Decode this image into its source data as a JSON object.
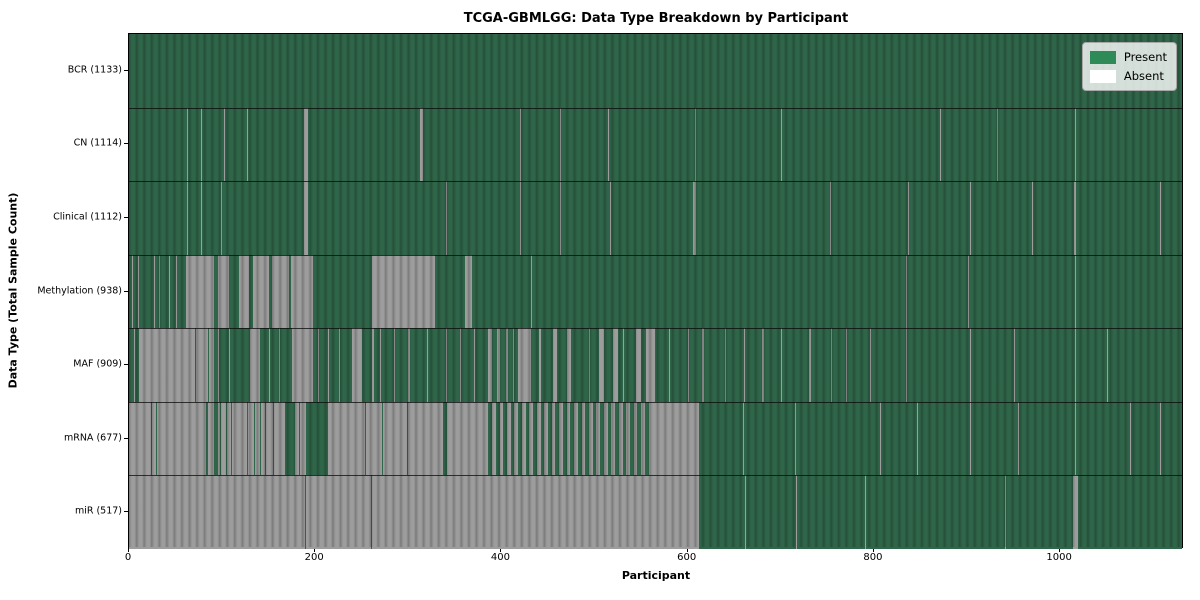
{
  "title": "TCGA-GBMLGG: Data Type Breakdown by Participant",
  "xlabel": "Participant",
  "ylabel": "Data Type (Total Sample Count)",
  "legend": {
    "present_label": "Present",
    "absent_label": "Absent",
    "present_color": "#2e8b57",
    "absent_color": "#ffffff"
  },
  "colors": {
    "present_bar": "#2f6549",
    "absent_bar": "#9d9d9d",
    "axes_border": "#000000",
    "background": "#ffffff"
  },
  "chart_data": {
    "type": "heatmap",
    "title": "TCGA-GBMLGG: Data Type Breakdown by Participant",
    "xlabel": "Participant",
    "ylabel": "Data Type (Total Sample Count)",
    "x_range": [
      0,
      1133
    ],
    "x_ticks": [
      0,
      200,
      400,
      600,
      800,
      1000
    ],
    "legend_entries": [
      "Present",
      "Absent"
    ],
    "legend_position": "upper right",
    "grid": false,
    "rows": [
      {
        "label": "BCR (1133)",
        "data_type": "BCR",
        "present_count": 1133,
        "absent_segments": []
      },
      {
        "label": "CN (1114)",
        "data_type": "CN",
        "present_count": 1114,
        "absent_segments": [
          [
            62,
            63
          ],
          [
            77,
            78
          ],
          [
            102,
            103
          ],
          [
            127,
            128
          ],
          [
            188,
            192
          ],
          [
            313,
            316
          ],
          [
            420,
            421
          ],
          [
            463,
            464
          ],
          [
            514,
            515
          ],
          [
            608,
            609
          ],
          [
            700,
            701
          ],
          [
            871,
            872
          ],
          [
            932,
            933
          ],
          [
            1016,
            1017
          ]
        ]
      },
      {
        "label": "Clinical (1112)",
        "data_type": "Clinical",
        "present_count": 1112,
        "absent_segments": [
          [
            62,
            63
          ],
          [
            77,
            78
          ],
          [
            99,
            100
          ],
          [
            188,
            192
          ],
          [
            340,
            341
          ],
          [
            420,
            421
          ],
          [
            463,
            464
          ],
          [
            517,
            518
          ],
          [
            606,
            609
          ],
          [
            753,
            754
          ],
          [
            837,
            838
          ],
          [
            903,
            904
          ],
          [
            970,
            971
          ],
          [
            1015,
            1017
          ],
          [
            1107,
            1108
          ]
        ]
      },
      {
        "label": "Methylation (938)",
        "data_type": "Methylation",
        "present_count": 938,
        "absent_segments": [
          [
            3,
            4
          ],
          [
            10,
            11
          ],
          [
            27,
            28
          ],
          [
            32,
            33
          ],
          [
            43,
            44
          ],
          [
            50,
            51
          ],
          [
            61,
            91
          ],
          [
            96,
            107
          ],
          [
            118,
            129
          ],
          [
            133,
            150
          ],
          [
            154,
            172
          ],
          [
            174,
            198
          ],
          [
            261,
            329
          ],
          [
            361,
            368
          ],
          [
            432,
            433
          ],
          [
            834,
            835
          ],
          [
            901,
            902
          ],
          [
            1016,
            1017
          ]
        ]
      },
      {
        "label": "MAF (909)",
        "data_type": "MAF",
        "present_count": 909,
        "absent_segments": [
          [
            5,
            6
          ],
          [
            11,
            21
          ],
          [
            22,
            71
          ],
          [
            72,
            85
          ],
          [
            86,
            91
          ],
          [
            96,
            97
          ],
          [
            107,
            108
          ],
          [
            130,
            141
          ],
          [
            150,
            151
          ],
          [
            161,
            162
          ],
          [
            175,
            198
          ],
          [
            203,
            204
          ],
          [
            214,
            215
          ],
          [
            225,
            226
          ],
          [
            240,
            250
          ],
          [
            261,
            263
          ],
          [
            270,
            271
          ],
          [
            285,
            286
          ],
          [
            300,
            302
          ],
          [
            320,
            321
          ],
          [
            340,
            341
          ],
          [
            355,
            356
          ],
          [
            370,
            372
          ],
          [
            386,
            390
          ],
          [
            395,
            398
          ],
          [
            405,
            407
          ],
          [
            412,
            414
          ],
          [
            418,
            432
          ],
          [
            440,
            442
          ],
          [
            455,
            460
          ],
          [
            470,
            475
          ],
          [
            494,
            495
          ],
          [
            505,
            510
          ],
          [
            520,
            525
          ],
          [
            530,
            531
          ],
          [
            545,
            550
          ],
          [
            555,
            565
          ],
          [
            580,
            581
          ],
          [
            600,
            601
          ],
          [
            615,
            617
          ],
          [
            640,
            641
          ],
          [
            660,
            662
          ],
          [
            680,
            682
          ],
          [
            700,
            701
          ],
          [
            730,
            732
          ],
          [
            754,
            755
          ],
          [
            770,
            771
          ],
          [
            796,
            797
          ],
          [
            834,
            835
          ],
          [
            903,
            904
          ],
          [
            950,
            951
          ],
          [
            1016,
            1017
          ],
          [
            1050,
            1051
          ]
        ]
      },
      {
        "label": "mRNA (677)",
        "data_type": "mRNA",
        "present_count": 677,
        "absent_segments": [
          [
            0,
            24
          ],
          [
            25,
            29
          ],
          [
            30,
            83
          ],
          [
            85,
            91
          ],
          [
            96,
            98
          ],
          [
            99,
            104
          ],
          [
            105,
            110
          ],
          [
            111,
            127
          ],
          [
            128,
            134
          ],
          [
            135,
            141
          ],
          [
            142,
            146
          ],
          [
            147,
            155
          ],
          [
            156,
            168
          ],
          [
            178,
            183
          ],
          [
            184,
            190
          ],
          [
            214,
            253
          ],
          [
            254,
            272
          ],
          [
            273,
            299
          ],
          [
            300,
            326
          ],
          [
            327,
            337
          ],
          [
            342,
            386
          ],
          [
            390,
            394
          ],
          [
            398,
            402
          ],
          [
            406,
            410
          ],
          [
            414,
            418
          ],
          [
            422,
            426
          ],
          [
            430,
            434
          ],
          [
            438,
            442
          ],
          [
            446,
            450
          ],
          [
            454,
            458
          ],
          [
            462,
            466
          ],
          [
            470,
            474
          ],
          [
            478,
            482
          ],
          [
            486,
            490
          ],
          [
            494,
            498
          ],
          [
            502,
            506
          ],
          [
            510,
            514
          ],
          [
            518,
            522
          ],
          [
            526,
            530
          ],
          [
            534,
            538
          ],
          [
            542,
            546
          ],
          [
            550,
            554
          ],
          [
            558,
            612
          ],
          [
            659,
            660
          ],
          [
            715,
            716
          ],
          [
            806,
            807
          ],
          [
            846,
            847
          ],
          [
            903,
            904
          ],
          [
            955,
            956
          ],
          [
            1016,
            1017
          ],
          [
            1075,
            1076
          ],
          [
            1107,
            1108
          ]
        ]
      },
      {
        "label": "miR (517)",
        "data_type": "miR",
        "present_count": 517,
        "absent_segments": [
          [
            0,
            189
          ],
          [
            190,
            260
          ],
          [
            261,
            612
          ],
          [
            662,
            663
          ],
          [
            716,
            717
          ],
          [
            790,
            791
          ],
          [
            941,
            942
          ],
          [
            1014,
            1019
          ]
        ]
      }
    ]
  }
}
